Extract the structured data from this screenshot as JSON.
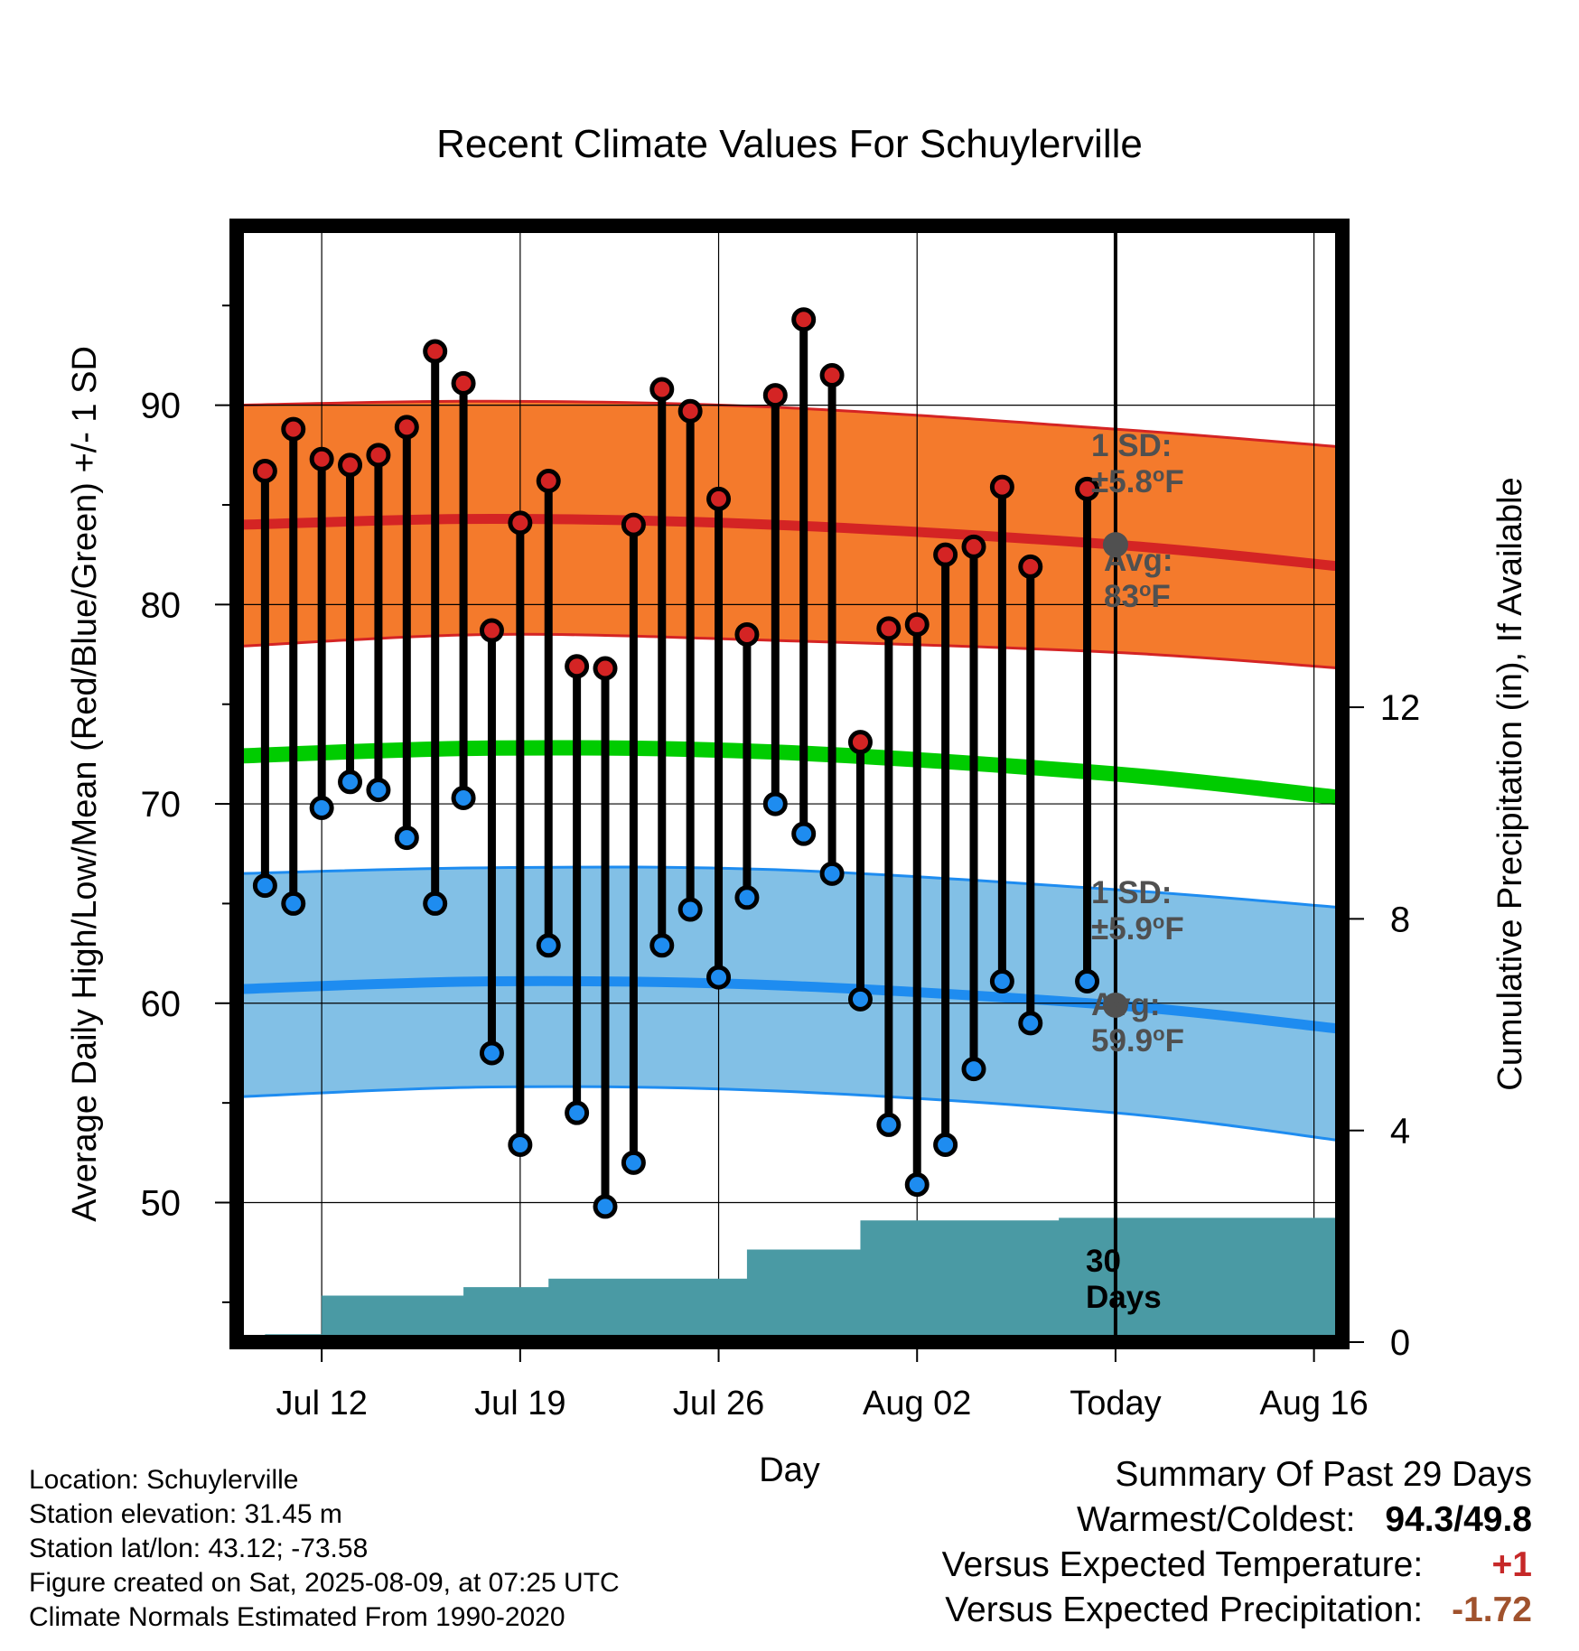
{
  "colors": {
    "high_band": "#f47a2c",
    "high_edge": "#d42424",
    "low_band": "#82c0e6",
    "low_edge": "#1e8cf0",
    "mean_line": "#00cc00",
    "precip": "#4a9aa4",
    "high_marker": "#d42424",
    "low_marker": "#1e8cf0",
    "annotation": "#505050",
    "temp_diff": "#c62828",
    "precip_diff": "#a0522d"
  },
  "chart_data": {
    "type": "line",
    "title": "Recent Climate Values For Schuylerville",
    "xlabel": "Day",
    "ylabel": "Average Daily High/Low/Mean (Red/Blue/Green) +/- 1 SD",
    "y2label": "Cumulative Precipitation (in), If Available",
    "x_ticks": [
      "Jul 12",
      "Jul 19",
      "Jul 26",
      "Aug 02",
      "Today",
      "Aug 16"
    ],
    "x_tick_dates": [
      "2025-07-12",
      "2025-07-19",
      "2025-07-26",
      "2025-08-02",
      "2025-08-09",
      "2025-08-16"
    ],
    "xlim": [
      "2025-07-09",
      "2025-08-17"
    ],
    "today": "2025-08-09",
    "y_ticks": [
      50,
      60,
      70,
      80,
      90
    ],
    "ylim": [
      43,
      99
    ],
    "y2_ticks": [
      0,
      4,
      8,
      12
    ],
    "y2lim": [
      0,
      21.1
    ],
    "grid": true,
    "daily": {
      "dates": [
        "2025-07-10",
        "2025-07-11",
        "2025-07-12",
        "2025-07-13",
        "2025-07-14",
        "2025-07-15",
        "2025-07-16",
        "2025-07-17",
        "2025-07-18",
        "2025-07-19",
        "2025-07-20",
        "2025-07-21",
        "2025-07-22",
        "2025-07-23",
        "2025-07-24",
        "2025-07-25",
        "2025-07-26",
        "2025-07-27",
        "2025-07-28",
        "2025-07-29",
        "2025-07-30",
        "2025-07-31",
        "2025-08-01",
        "2025-08-02",
        "2025-08-03",
        "2025-08-04",
        "2025-08-05",
        "2025-08-06",
        "2025-08-08"
      ],
      "high": [
        86.7,
        88.8,
        87.3,
        87.0,
        87.5,
        88.9,
        92.7,
        91.1,
        78.7,
        84.1,
        86.2,
        76.9,
        76.8,
        84.0,
        90.8,
        89.7,
        85.3,
        78.5,
        90.5,
        94.3,
        91.5,
        73.1,
        78.8,
        79.0,
        82.5,
        82.9,
        85.9,
        81.9,
        85.8
      ],
      "low": [
        65.9,
        65.0,
        69.8,
        71.1,
        70.7,
        68.3,
        65.0,
        70.3,
        57.5,
        52.9,
        62.9,
        54.5,
        49.8,
        52.0,
        62.9,
        64.7,
        61.3,
        65.3,
        70.0,
        68.5,
        66.5,
        60.2,
        53.9,
        50.9,
        52.9,
        56.7,
        61.1,
        59.0,
        61.1
      ]
    },
    "series": [
      {
        "name": "High +1 SD",
        "x": [
          "2025-07-09",
          "2025-07-18",
          "2025-07-28",
          "2025-08-09",
          "2025-08-17"
        ],
        "values": [
          90.0,
          90.2,
          89.9,
          88.8,
          87.9
        ]
      },
      {
        "name": "Avg High",
        "x": [
          "2025-07-09",
          "2025-07-18",
          "2025-07-28",
          "2025-08-09",
          "2025-08-17"
        ],
        "values": [
          84.0,
          84.3,
          84.0,
          83.0,
          81.9
        ]
      },
      {
        "name": "High -1 SD",
        "x": [
          "2025-07-09",
          "2025-07-18",
          "2025-07-28",
          "2025-08-09",
          "2025-08-17"
        ],
        "values": [
          77.9,
          78.5,
          78.2,
          77.6,
          76.8
        ]
      },
      {
        "name": "Avg Mean",
        "x": [
          "2025-07-09",
          "2025-07-18",
          "2025-07-28",
          "2025-08-09",
          "2025-08-17"
        ],
        "values": [
          72.4,
          72.8,
          72.6,
          71.5,
          70.3
        ]
      },
      {
        "name": "Low +1 SD",
        "x": [
          "2025-07-09",
          "2025-07-18",
          "2025-07-28",
          "2025-08-09",
          "2025-08-17"
        ],
        "values": [
          66.5,
          66.8,
          66.7,
          65.7,
          64.8
        ]
      },
      {
        "name": "Avg Low",
        "x": [
          "2025-07-09",
          "2025-07-18",
          "2025-07-28",
          "2025-08-09",
          "2025-08-17"
        ],
        "values": [
          60.7,
          61.1,
          60.9,
          59.9,
          58.7
        ]
      },
      {
        "name": "Low -1 SD",
        "x": [
          "2025-07-09",
          "2025-07-18",
          "2025-07-28",
          "2025-08-09",
          "2025-08-17"
        ],
        "values": [
          55.3,
          55.8,
          55.6,
          54.5,
          53.1
        ]
      }
    ],
    "precip_cumulative": {
      "dates": [
        "2025-07-09",
        "2025-07-10",
        "2025-07-11",
        "2025-07-12",
        "2025-07-13",
        "2025-07-14",
        "2025-07-15",
        "2025-07-16",
        "2025-07-17",
        "2025-07-18",
        "2025-07-19",
        "2025-07-20",
        "2025-07-21",
        "2025-07-22",
        "2025-07-23",
        "2025-07-24",
        "2025-07-25",
        "2025-07-26",
        "2025-07-27",
        "2025-07-28",
        "2025-07-29",
        "2025-07-30",
        "2025-07-31",
        "2025-08-01",
        "2025-08-02",
        "2025-08-03",
        "2025-08-04",
        "2025-08-05",
        "2025-08-06",
        "2025-08-07",
        "2025-08-08",
        "2025-08-09",
        "2025-08-17"
      ],
      "values": [
        0.0,
        0.15,
        0.15,
        0.88,
        0.88,
        0.88,
        0.88,
        0.88,
        1.04,
        1.04,
        1.04,
        1.2,
        1.2,
        1.2,
        1.2,
        1.2,
        1.2,
        1.2,
        1.75,
        1.75,
        1.75,
        1.75,
        2.3,
        2.3,
        2.3,
        2.3,
        2.3,
        2.3,
        2.3,
        2.35,
        2.35,
        2.35,
        2.35
      ]
    },
    "annotations": [
      {
        "line1": "1 SD:",
        "line2": "±5.8",
        "unit": "F"
      },
      {
        "line1": "Avg:",
        "line2": "83",
        "unit": "F"
      },
      {
        "line1": "1 SD:",
        "line2": "±5.9",
        "unit": "F"
      },
      {
        "line1": "Avg:",
        "line2": "59.9",
        "unit": "F"
      },
      {
        "line1": "30",
        "line2": "Days",
        "unit": ""
      }
    ]
  },
  "info": {
    "location": "Location: Schuylerville",
    "elevation": "Station elevation: 31.45 m",
    "latlon": "Station lat/lon: 43.12; -73.58",
    "created": "Figure created on Sat, 2025-08-09, at 07:25 UTC",
    "normals": "Climate Normals Estimated From 1990-2020"
  },
  "summary": {
    "title": "Summary Of Past 29 Days",
    "warmest_label": "Warmest/Coldest:",
    "warmest_value": "94.3/49.8",
    "temp_label": "Versus Expected Temperature:",
    "temp_value": "+1",
    "precip_label": "Versus Expected Precipitation:",
    "precip_value": "-1.72"
  }
}
